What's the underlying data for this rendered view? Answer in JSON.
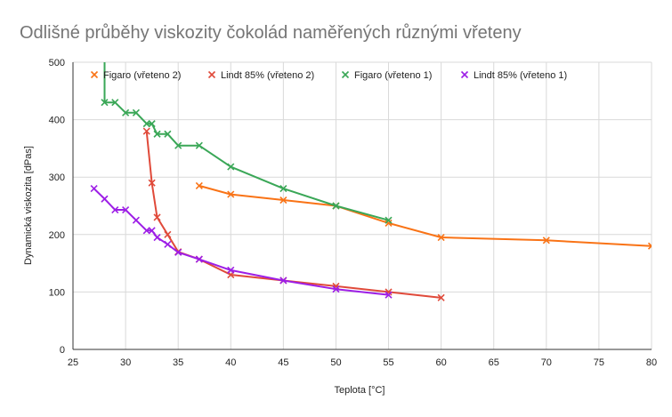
{
  "chart_data": {
    "type": "line",
    "title": "Odlišné průběhy viskozity čokolád naměřených různými vřeteny",
    "xlabel": "Teplota [°C]",
    "ylabel": "Dynamická viskozita [dPas]",
    "xlim": [
      25,
      80
    ],
    "ylim": [
      0,
      500
    ],
    "xticks": [
      25,
      30,
      35,
      40,
      45,
      50,
      55,
      60,
      65,
      70,
      75,
      80
    ],
    "yticks": [
      0,
      100,
      200,
      300,
      400,
      500
    ],
    "grid": true,
    "legend": "top-left",
    "series": [
      {
        "name": "Figaro (vřeteno 2)",
        "color": "#f97316",
        "marker": "x",
        "points": [
          [
            37,
            285
          ],
          [
            40,
            270
          ],
          [
            45,
            260
          ],
          [
            50,
            250
          ],
          [
            55,
            220
          ],
          [
            60,
            195
          ],
          [
            70,
            190
          ],
          [
            80,
            180
          ]
        ]
      },
      {
        "name": "Lindt 85% (vřeteno 2)",
        "color": "#e04a3a",
        "marker": "x",
        "points": [
          [
            32,
            380
          ],
          [
            32.5,
            290
          ],
          [
            33,
            230
          ],
          [
            34,
            200
          ],
          [
            35,
            170
          ],
          [
            37,
            157
          ],
          [
            40,
            130
          ],
          [
            45,
            120
          ],
          [
            50,
            110
          ],
          [
            55,
            100
          ],
          [
            60,
            90
          ]
        ]
      },
      {
        "name": "Figaro (vřeteno 1)",
        "color": "#3aa757",
        "marker": "x",
        "points": [
          [
            28,
            520
          ],
          [
            28,
            430
          ],
          [
            29,
            430
          ],
          [
            30,
            412
          ],
          [
            31,
            412
          ],
          [
            32,
            393
          ],
          [
            32.5,
            393
          ],
          [
            33,
            375
          ],
          [
            34,
            375
          ],
          [
            35,
            355
          ],
          [
            37,
            355
          ],
          [
            40,
            318
          ],
          [
            45,
            280
          ],
          [
            50,
            250
          ],
          [
            55,
            225
          ]
        ]
      },
      {
        "name": "Lindt 85% (vřeteno 1)",
        "color": "#9d1ee6",
        "marker": "x",
        "points": [
          [
            27,
            280
          ],
          [
            28,
            262
          ],
          [
            29,
            243
          ],
          [
            30,
            243
          ],
          [
            31,
            225
          ],
          [
            32,
            207
          ],
          [
            32.5,
            207
          ],
          [
            33,
            195
          ],
          [
            34,
            183
          ],
          [
            35,
            169
          ],
          [
            37,
            157
          ],
          [
            40,
            138
          ],
          [
            45,
            120
          ],
          [
            50,
            105
          ],
          [
            55,
            95
          ]
        ]
      }
    ]
  }
}
